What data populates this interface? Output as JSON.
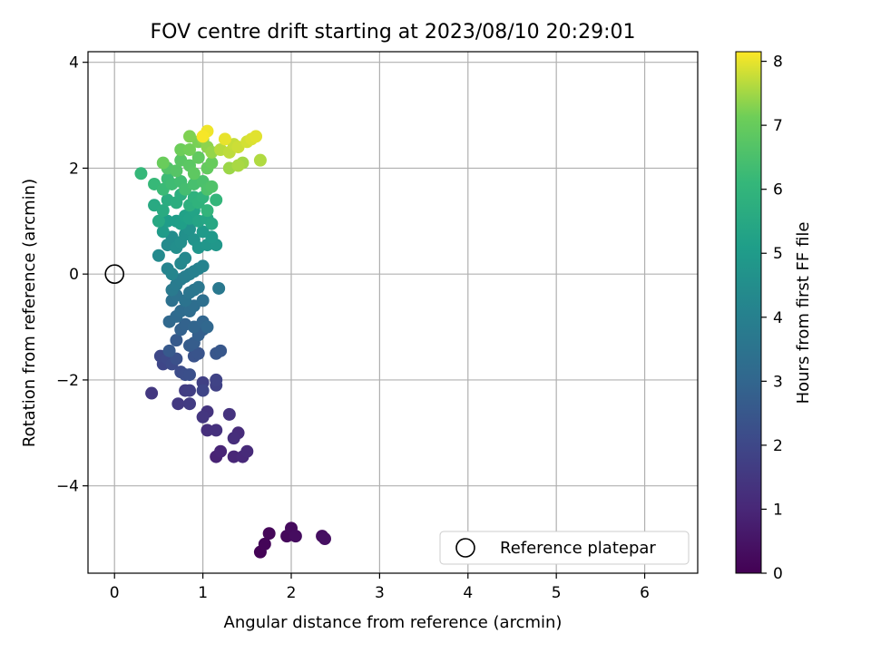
{
  "chart_data": {
    "type": "scatter",
    "title": "FOV centre drift starting at 2023/08/10 20:29:01",
    "xlabel": "Angular distance from reference (arcmin)",
    "ylabel": "Rotation from reference (arcmin)",
    "xlim": [
      -0.3,
      6.6
    ],
    "ylim": [
      -5.65,
      4.2
    ],
    "xticks": [
      0,
      1,
      2,
      3,
      4,
      5,
      6
    ],
    "yticks": [
      -4,
      -2,
      0,
      2,
      4
    ],
    "grid": true,
    "colorbar": {
      "label": "Hours from first FF file",
      "range": [
        0,
        8.15
      ],
      "ticks": [
        0,
        1,
        2,
        3,
        4,
        5,
        6,
        7,
        8
      ],
      "colormap": "viridis"
    },
    "reference": {
      "x": 0,
      "y": 0,
      "label": "Reference platepar"
    },
    "legend": {
      "location": "lower right",
      "entries": [
        "Reference platepar"
      ]
    },
    "series": [
      {
        "values_note": "",
        "points": [
          [
            1.65,
            -5.25,
            0.05
          ],
          [
            1.7,
            -5.1,
            0.1
          ],
          [
            1.75,
            -4.9,
            0.15
          ],
          [
            1.95,
            -4.95,
            0.2
          ],
          [
            2.0,
            -4.8,
            0.25
          ],
          [
            2.05,
            -4.95,
            0.3
          ],
          [
            2.35,
            -4.95,
            0.35
          ],
          [
            2.38,
            -5.0,
            0.4
          ],
          [
            1.15,
            -3.45,
            0.9
          ],
          [
            1.2,
            -3.35,
            0.95
          ],
          [
            1.35,
            -3.45,
            1.0
          ],
          [
            1.45,
            -3.45,
            1.05
          ],
          [
            1.5,
            -3.35,
            1.1
          ],
          [
            1.4,
            -3.0,
            1.15
          ],
          [
            1.35,
            -3.1,
            1.2
          ],
          [
            1.05,
            -2.95,
            1.25
          ],
          [
            1.15,
            -2.95,
            1.3
          ],
          [
            1.3,
            -2.65,
            1.35
          ],
          [
            1.05,
            -2.6,
            1.4
          ],
          [
            1.0,
            -2.7,
            1.45
          ],
          [
            0.42,
            -2.25,
            1.5
          ],
          [
            0.72,
            -2.45,
            1.55
          ],
          [
            0.85,
            -2.45,
            1.6
          ],
          [
            0.8,
            -2.2,
            1.65
          ],
          [
            0.85,
            -2.2,
            1.7
          ],
          [
            1.0,
            -2.05,
            1.75
          ],
          [
            1.15,
            -2.1,
            1.8
          ],
          [
            1.15,
            -2.0,
            1.85
          ],
          [
            1.0,
            -2.2,
            1.9
          ],
          [
            0.55,
            -1.7,
            1.95
          ],
          [
            0.52,
            -1.55,
            2.0
          ],
          [
            0.6,
            -1.6,
            2.05
          ],
          [
            0.65,
            -1.7,
            2.1
          ],
          [
            0.75,
            -1.85,
            2.15
          ],
          [
            0.8,
            -1.9,
            2.2
          ],
          [
            0.85,
            -1.9,
            2.25
          ],
          [
            0.7,
            -1.6,
            2.3
          ],
          [
            0.9,
            -1.55,
            2.35
          ],
          [
            0.95,
            -1.5,
            2.4
          ],
          [
            1.15,
            -1.5,
            2.45
          ],
          [
            1.2,
            -1.45,
            2.5
          ],
          [
            0.62,
            -1.45,
            2.55
          ],
          [
            0.7,
            -1.25,
            2.6
          ],
          [
            0.85,
            -1.35,
            2.65
          ],
          [
            0.9,
            -1.3,
            2.7
          ],
          [
            1.0,
            -1.05,
            2.75
          ],
          [
            0.95,
            -1.15,
            2.8
          ],
          [
            0.75,
            -1.05,
            2.85
          ],
          [
            0.8,
            -0.95,
            2.9
          ],
          [
            0.9,
            -1.0,
            2.95
          ],
          [
            1.0,
            -0.9,
            3.0
          ],
          [
            1.05,
            -1.0,
            3.05
          ],
          [
            0.62,
            -0.9,
            3.1
          ],
          [
            0.7,
            -0.8,
            3.15
          ],
          [
            0.75,
            -0.7,
            3.2
          ],
          [
            0.85,
            -0.7,
            3.25
          ],
          [
            0.9,
            -0.6,
            3.3
          ],
          [
            1.0,
            -0.5,
            3.35
          ],
          [
            0.65,
            -0.5,
            3.4
          ],
          [
            0.7,
            -0.4,
            3.45
          ],
          [
            0.8,
            -0.5,
            3.5
          ],
          [
            0.85,
            -0.35,
            3.55
          ],
          [
            0.9,
            -0.3,
            3.6
          ],
          [
            0.95,
            -0.25,
            3.65
          ],
          [
            1.18,
            -0.27,
            3.7
          ],
          [
            0.65,
            -0.3,
            3.75
          ],
          [
            0.7,
            -0.2,
            3.8
          ],
          [
            0.75,
            -0.1,
            3.85
          ],
          [
            0.8,
            -0.05,
            3.9
          ],
          [
            0.85,
            0.0,
            3.95
          ],
          [
            0.9,
            0.05,
            4.0
          ],
          [
            0.95,
            0.1,
            4.05
          ],
          [
            1.0,
            0.15,
            4.1
          ],
          [
            0.6,
            0.1,
            4.15
          ],
          [
            0.65,
            0.0,
            4.2
          ],
          [
            0.75,
            0.2,
            4.25
          ],
          [
            0.8,
            0.3,
            4.3
          ],
          [
            0.5,
            0.35,
            4.35
          ],
          [
            0.6,
            0.55,
            4.4
          ],
          [
            0.65,
            0.7,
            4.45
          ],
          [
            0.7,
            0.5,
            4.5
          ],
          [
            0.75,
            0.6,
            4.55
          ],
          [
            0.8,
            0.75,
            4.6
          ],
          [
            0.85,
            0.85,
            4.65
          ],
          [
            0.9,
            0.65,
            4.7
          ],
          [
            0.95,
            0.5,
            4.75
          ],
          [
            1.05,
            0.55,
            4.8
          ],
          [
            1.15,
            0.55,
            4.85
          ],
          [
            1.1,
            0.7,
            4.9
          ],
          [
            1.0,
            0.8,
            4.95
          ],
          [
            0.55,
            0.8,
            5.0
          ],
          [
            0.6,
            1.0,
            5.05
          ],
          [
            0.7,
            1.0,
            5.1
          ],
          [
            0.75,
            0.95,
            5.15
          ],
          [
            0.8,
            1.1,
            5.2
          ],
          [
            0.85,
            1.05,
            5.25
          ],
          [
            0.9,
            1.2,
            5.3
          ],
          [
            0.95,
            1.0,
            5.35
          ],
          [
            1.05,
            1.05,
            5.4
          ],
          [
            1.1,
            0.95,
            5.45
          ],
          [
            0.5,
            1.0,
            5.5
          ],
          [
            0.45,
            1.3,
            5.55
          ],
          [
            0.55,
            1.2,
            5.6
          ],
          [
            0.6,
            1.4,
            5.65
          ],
          [
            0.7,
            1.35,
            5.7
          ],
          [
            0.75,
            1.5,
            5.75
          ],
          [
            0.85,
            1.3,
            5.8
          ],
          [
            0.9,
            1.45,
            5.85
          ],
          [
            0.95,
            1.35,
            5.9
          ],
          [
            1.0,
            1.45,
            5.95
          ],
          [
            1.05,
            1.2,
            6.0
          ],
          [
            1.15,
            1.4,
            6.05
          ],
          [
            0.3,
            1.9,
            6.1
          ],
          [
            0.45,
            1.7,
            6.15
          ],
          [
            0.55,
            1.6,
            6.2
          ],
          [
            0.6,
            1.8,
            6.25
          ],
          [
            0.65,
            1.7,
            6.3
          ],
          [
            0.75,
            1.75,
            6.35
          ],
          [
            0.8,
            1.6,
            6.4
          ],
          [
            0.9,
            1.7,
            6.45
          ],
          [
            1.0,
            1.75,
            6.5
          ],
          [
            1.05,
            1.6,
            6.55
          ],
          [
            1.1,
            1.65,
            6.6
          ],
          [
            0.6,
            2.0,
            6.65
          ],
          [
            0.7,
            1.95,
            6.7
          ],
          [
            0.75,
            2.15,
            6.75
          ],
          [
            0.85,
            2.05,
            6.8
          ],
          [
            0.9,
            1.9,
            6.85
          ],
          [
            0.95,
            2.2,
            6.9
          ],
          [
            1.05,
            2.0,
            6.95
          ],
          [
            1.1,
            2.1,
            7.0
          ],
          [
            0.55,
            2.1,
            7.05
          ],
          [
            0.75,
            2.35,
            7.1
          ],
          [
            0.85,
            2.35,
            7.15
          ],
          [
            0.95,
            2.5,
            7.2
          ],
          [
            0.85,
            2.6,
            7.25
          ],
          [
            1.0,
            2.55,
            7.3
          ],
          [
            1.05,
            2.4,
            7.35
          ],
          [
            1.1,
            2.3,
            7.4
          ],
          [
            1.3,
            2.0,
            7.45
          ],
          [
            1.45,
            2.1,
            7.5
          ],
          [
            1.4,
            2.05,
            7.55
          ],
          [
            1.65,
            2.15,
            7.6
          ],
          [
            1.2,
            2.35,
            7.65
          ],
          [
            1.3,
            2.3,
            7.7
          ],
          [
            1.35,
            2.45,
            7.75
          ],
          [
            1.4,
            2.4,
            7.8
          ],
          [
            1.5,
            2.5,
            7.85
          ],
          [
            1.55,
            2.55,
            7.9
          ],
          [
            1.6,
            2.6,
            7.95
          ],
          [
            1.25,
            2.55,
            8.0
          ],
          [
            1.05,
            2.7,
            8.05
          ],
          [
            1.0,
            2.6,
            8.1
          ]
        ]
      }
    ]
  }
}
